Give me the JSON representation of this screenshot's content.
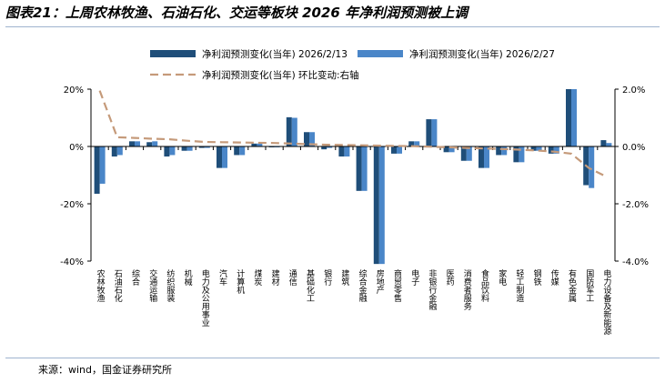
{
  "figure": {
    "title": "图表21：上周农林牧渔、石油石化、交运等板块 2026 年净利润预测被上调",
    "source": "来源：wind，国金证券研究所"
  },
  "colors": {
    "series1": "#1f4e79",
    "series2": "#4a86c8",
    "line": "#c59a7a",
    "axis": "#000000",
    "rule": "#9fb4cf"
  },
  "chart_data": {
    "type": "bar",
    "categories": [
      "农林牧渔",
      "石油石化",
      "综合",
      "交通运输",
      "纺织服装",
      "机械",
      "电力及公用事业",
      "汽车",
      "计算机",
      "煤炭",
      "建材",
      "通信",
      "基础化工",
      "银行",
      "建筑",
      "综合金融",
      "房地产",
      "商贸零售",
      "电子",
      "非银行金融",
      "医药",
      "消费者服务",
      "食品饮料",
      "家电",
      "轻工制造",
      "钢铁",
      "传媒",
      "有色金属",
      "国防军工",
      "电力设备及新能源"
    ],
    "series": [
      {
        "name": "净利润预测变化(当年) 2026/2/13",
        "axis": "left",
        "values": [
          -16.5,
          -3.5,
          1.8,
          1.5,
          -3.5,
          -1.5,
          -0.5,
          -7.5,
          -3.0,
          1.0,
          -0.3,
          10.2,
          5.0,
          -1.0,
          -3.5,
          -15.5,
          -41.0,
          -2.5,
          1.8,
          9.5,
          -2.0,
          -5.0,
          -7.5,
          -3.0,
          -5.5,
          -1.5,
          -2.5,
          20.0,
          -13.5,
          2.2
        ]
      },
      {
        "name": "净利润预测变化(当年) 2026/2/27",
        "axis": "left",
        "values": [
          -13.0,
          -3.0,
          1.8,
          1.8,
          -3.0,
          -1.5,
          -0.5,
          -7.5,
          -3.0,
          1.0,
          -0.3,
          10.0,
          5.0,
          -0.5,
          -3.5,
          -15.5,
          -41.0,
          -2.5,
          1.8,
          9.5,
          -2.0,
          -5.0,
          -7.5,
          -3.0,
          -5.5,
          -1.5,
          -2.5,
          20.0,
          -14.5,
          1.2
        ]
      },
      {
        "name": "净利润预测变化(当年) 环比变动:右轴",
        "axis": "right",
        "type": "line",
        "values": [
          1.95,
          0.32,
          0.3,
          0.27,
          0.25,
          0.2,
          0.16,
          0.15,
          0.14,
          0.13,
          0.12,
          0.1,
          0.08,
          0.06,
          0.05,
          0.04,
          0.03,
          0.02,
          0.01,
          -0.01,
          -0.03,
          -0.05,
          -0.07,
          -0.09,
          -0.11,
          -0.14,
          -0.18,
          -0.25,
          -0.75,
          -1.05
        ]
      }
    ],
    "left_axis": {
      "ylim": [
        -40,
        20
      ],
      "ticks": [
        20,
        0,
        -20,
        -40
      ],
      "tick_labels": [
        "20%",
        "0%",
        "-20%",
        "-40%"
      ]
    },
    "right_axis": {
      "ylim": [
        -4,
        2
      ],
      "ticks": [
        2,
        0,
        -2,
        -4
      ],
      "tick_labels": [
        "2.0%",
        "0.0%",
        "-2.0%",
        "-4.0%"
      ]
    },
    "legend_position": "top"
  }
}
